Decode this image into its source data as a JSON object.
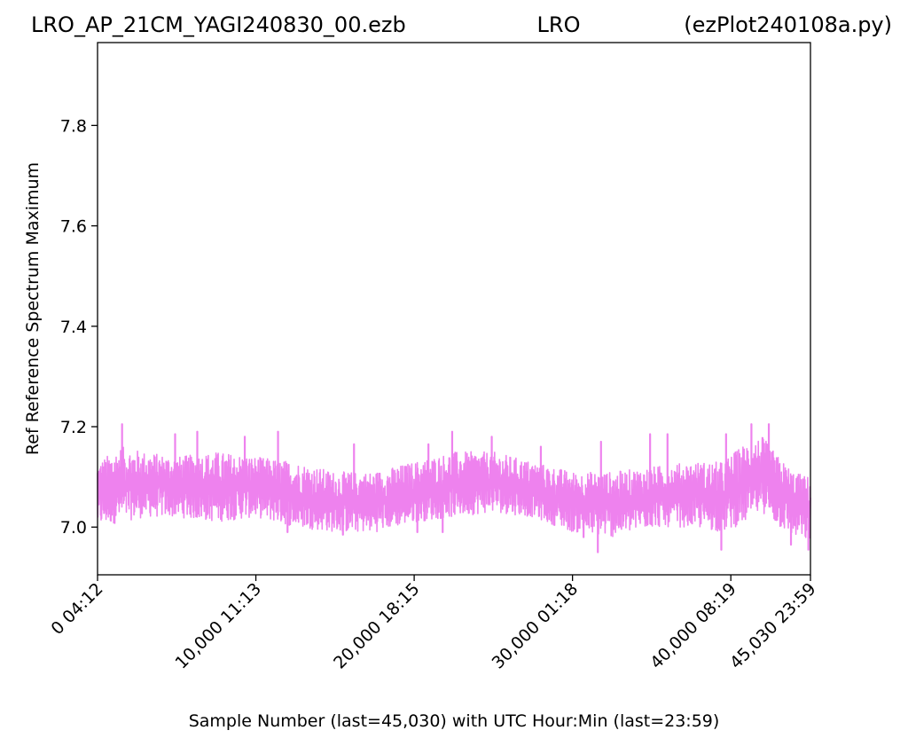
{
  "chart_data": {
    "type": "line",
    "title_left": "LRO_AP_21CM_YAGI240830_00.ezb",
    "title_center": "LRO",
    "title_right": "(ezPlot240108a.py)",
    "xlabel": "Sample Number (last=45,030) with UTC Hour:Min (last=23:59)",
    "ylabel": "Ref Reference Spectrum Maximum",
    "xlim": [
      0,
      45030
    ],
    "ylim": [
      6.905,
      7.965
    ],
    "grid": false,
    "line_color": "#ee82ee",
    "x_ticks": [
      {
        "value": 0,
        "label": "0  04:12"
      },
      {
        "value": 10000,
        "label": "10,000  11:13"
      },
      {
        "value": 20000,
        "label": "20,000  18:15"
      },
      {
        "value": 30000,
        "label": "30,000  01:18"
      },
      {
        "value": 40000,
        "label": "40,000  08:19"
      },
      {
        "value": 45030,
        "label": "45,030  23:59"
      }
    ],
    "y_ticks": [
      {
        "value": 7.0,
        "label": "7.0"
      },
      {
        "value": 7.2,
        "label": "7.2"
      },
      {
        "value": 7.4,
        "label": "7.4"
      },
      {
        "value": 7.6,
        "label": "7.6"
      },
      {
        "value": 7.8,
        "label": "7.8"
      }
    ],
    "series": [
      {
        "envelope": {
          "x": [
            0,
            1500,
            3000,
            5000,
            7500,
            10000,
            12500,
            15000,
            17500,
            20000,
            22500,
            25000,
            27500,
            30000,
            32500,
            35000,
            37500,
            39500,
            41000,
            42000,
            43000,
            44000,
            45030
          ],
          "low": [
            7.0,
            7.01,
            7.02,
            7.02,
            7.01,
            7.02,
            7.0,
            6.99,
            6.99,
            7.01,
            7.02,
            7.03,
            7.02,
            6.99,
            6.98,
            7.0,
            7.0,
            6.99,
            7.01,
            7.03,
            7.0,
            6.98,
            6.97
          ],
          "high": [
            7.13,
            7.16,
            7.15,
            7.14,
            7.15,
            7.14,
            7.13,
            7.11,
            7.11,
            7.13,
            7.15,
            7.15,
            7.13,
            7.11,
            7.11,
            7.12,
            7.13,
            7.13,
            7.17,
            7.18,
            7.14,
            7.11,
            7.1
          ]
        },
        "spikes": [
          {
            "x": 1550,
            "y": 7.205
          },
          {
            "x": 4900,
            "y": 7.185
          },
          {
            "x": 6300,
            "y": 7.19
          },
          {
            "x": 9300,
            "y": 7.18
          },
          {
            "x": 11400,
            "y": 7.19
          },
          {
            "x": 16200,
            "y": 7.165
          },
          {
            "x": 20900,
            "y": 7.165
          },
          {
            "x": 22400,
            "y": 7.19
          },
          {
            "x": 24900,
            "y": 7.18
          },
          {
            "x": 28000,
            "y": 7.16
          },
          {
            "x": 31800,
            "y": 7.17
          },
          {
            "x": 34900,
            "y": 7.185
          },
          {
            "x": 36000,
            "y": 7.185
          },
          {
            "x": 39700,
            "y": 7.185
          },
          {
            "x": 41300,
            "y": 7.205
          },
          {
            "x": 42400,
            "y": 7.205
          },
          {
            "x": 12000,
            "y": 6.99
          },
          {
            "x": 15500,
            "y": 6.985
          },
          {
            "x": 20200,
            "y": 6.99
          },
          {
            "x": 21800,
            "y": 6.99
          },
          {
            "x": 30700,
            "y": 6.98
          },
          {
            "x": 31600,
            "y": 6.95
          },
          {
            "x": 39400,
            "y": 6.955
          },
          {
            "x": 43800,
            "y": 6.965
          },
          {
            "x": 44900,
            "y": 6.955
          }
        ]
      }
    ]
  }
}
